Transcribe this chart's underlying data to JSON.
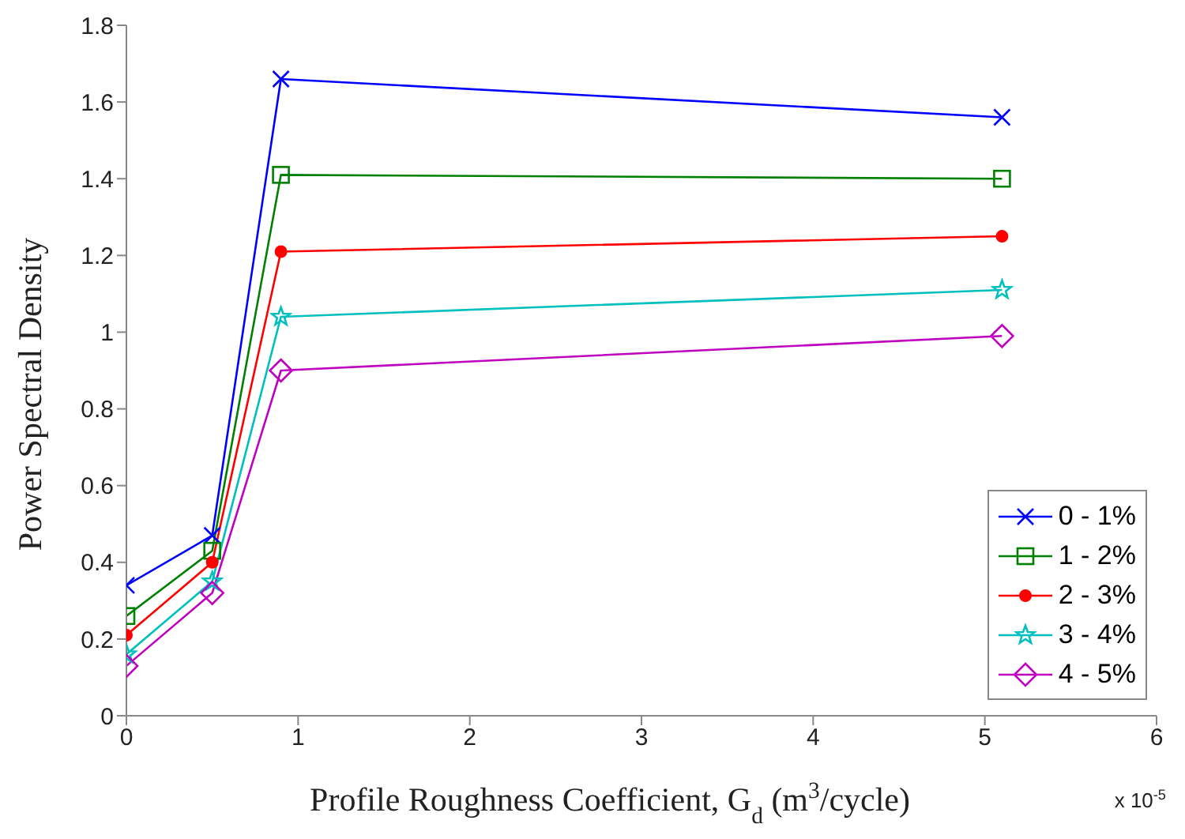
{
  "chart_data": {
    "type": "line",
    "xlabel": "Profile Roughness Coefficient, G$_{d}$ (m$^{3}$/cycle)",
    "ylabel": "Power Spectral Density",
    "annotations": [
      "x 10$^{-5}$"
    ],
    "x": [
      0,
      0.5,
      0.9,
      5.1
    ],
    "series": [
      {
        "name": "0 - 1%",
        "color": "#0000ff",
        "marker": "cross",
        "values": [
          0.34,
          0.47,
          1.66,
          1.56
        ]
      },
      {
        "name": "1 - 2%",
        "color": "#008000",
        "marker": "square",
        "values": [
          0.26,
          0.43,
          1.41,
          1.4
        ]
      },
      {
        "name": "2 - 3%",
        "color": "#ff0000",
        "marker": "circle",
        "values": [
          0.21,
          0.4,
          1.21,
          1.25
        ]
      },
      {
        "name": "3 - 4%",
        "color": "#00bfbf",
        "marker": "star",
        "values": [
          0.16,
          0.35,
          1.04,
          1.11
        ]
      },
      {
        "name": "4 - 5%",
        "color": "#bf00bf",
        "marker": "diamond",
        "values": [
          0.13,
          0.32,
          0.9,
          0.99
        ]
      }
    ],
    "xlim": [
      0,
      6
    ],
    "xticks": [
      0,
      1,
      2,
      3,
      4,
      5,
      6
    ],
    "ylim": [
      0,
      1.8
    ],
    "yticks": [
      0,
      0.2,
      0.4,
      0.6,
      0.8,
      1,
      1.2,
      1.4,
      1.6,
      1.8
    ],
    "grid": false,
    "legend": "bottom right",
    "line_style": "solid"
  }
}
